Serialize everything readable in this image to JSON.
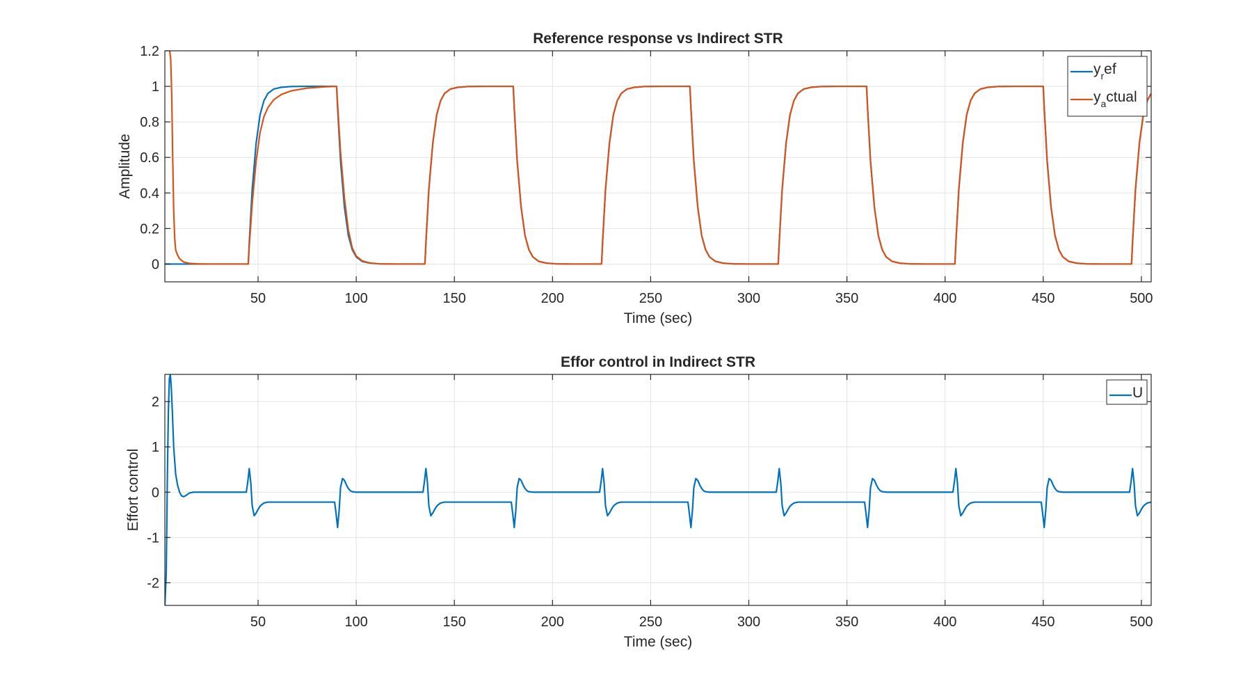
{
  "chart_data": [
    {
      "type": "line",
      "title": "Reference response vs Indirect STR",
      "xlabel": "Time (sec)",
      "ylabel": "Amplitude",
      "xlim": [
        2.5,
        505
      ],
      "ylim": [
        -0.1,
        1.2
      ],
      "xticks": [
        50,
        100,
        150,
        200,
        250,
        300,
        350,
        400,
        450,
        500
      ],
      "xtick_labels": [
        "50",
        "100",
        "150",
        "200",
        "250",
        "300",
        "350",
        "400",
        "450",
        "500"
      ],
      "yticks": [
        0,
        0.2,
        0.4,
        0.6,
        0.8,
        1,
        1.2
      ],
      "ytick_labels": [
        "0",
        "0.2",
        "0.4",
        "0.6",
        "0.8",
        "1",
        "1.2"
      ],
      "grid": true,
      "legend_position": "top-right",
      "series": [
        {
          "name": "y_ref",
          "legend_main": "y",
          "legend_sub": "r",
          "legend_rest": "ef",
          "color": "#0072BD",
          "x": [
            2.5,
            10,
            15,
            20,
            25,
            30,
            35,
            40,
            45,
            45.5,
            47,
            49,
            51,
            53,
            55,
            58,
            62,
            67,
            75,
            85,
            90,
            90.5,
            92,
            94,
            96,
            98,
            100,
            103,
            107,
            112,
            120,
            130,
            135,
            135.5,
            137,
            139,
            141,
            143,
            145,
            148,
            152,
            157,
            165,
            175,
            180,
            180.5,
            182,
            184,
            186,
            188,
            190,
            193,
            197,
            202,
            210,
            220,
            225,
            225.5,
            227,
            229,
            231,
            233,
            235,
            238,
            242,
            247,
            255,
            265,
            270,
            270.5,
            272,
            274,
            276,
            278,
            280,
            283,
            287,
            292,
            300,
            310,
            315,
            315.5,
            317,
            319,
            321,
            323,
            325,
            328,
            332,
            337,
            345,
            355,
            360,
            360.5,
            362,
            364,
            366,
            368,
            370,
            373,
            377,
            382,
            390,
            400,
            405,
            405.5,
            407,
            409,
            411,
            413,
            415,
            418,
            422,
            427,
            435,
            445,
            450,
            450.5,
            452,
            454,
            456,
            458,
            460,
            463,
            467,
            472,
            480,
            490,
            495,
            495.5,
            497,
            499,
            501,
            503,
            505
          ],
          "y": [
            0,
            0,
            0,
            0,
            0,
            0,
            0,
            0,
            0,
            0.12,
            0.42,
            0.68,
            0.84,
            0.92,
            0.96,
            0.985,
            0.995,
            0.999,
            1,
            1,
            1,
            0.88,
            0.58,
            0.32,
            0.16,
            0.08,
            0.04,
            0.015,
            0.005,
            0.001,
            0,
            0,
            0,
            0.12,
            0.42,
            0.68,
            0.84,
            0.92,
            0.96,
            0.985,
            0.995,
            0.999,
            1,
            1,
            1,
            0.88,
            0.58,
            0.32,
            0.16,
            0.08,
            0.04,
            0.015,
            0.005,
            0.001,
            0,
            0,
            0,
            0.12,
            0.42,
            0.68,
            0.84,
            0.92,
            0.96,
            0.985,
            0.995,
            0.999,
            1,
            1,
            1,
            0.88,
            0.58,
            0.32,
            0.16,
            0.08,
            0.04,
            0.015,
            0.005,
            0.001,
            0,
            0,
            0,
            0.12,
            0.42,
            0.68,
            0.84,
            0.92,
            0.96,
            0.985,
            0.995,
            0.999,
            1,
            1,
            1,
            0.88,
            0.58,
            0.32,
            0.16,
            0.08,
            0.04,
            0.015,
            0.005,
            0.001,
            0,
            0,
            0,
            0.12,
            0.42,
            0.68,
            0.84,
            0.92,
            0.96,
            0.985,
            0.995,
            0.999,
            1,
            1,
            1,
            0.88,
            0.58,
            0.32,
            0.16,
            0.08,
            0.04,
            0.015,
            0.005,
            0.001,
            0,
            0,
            0,
            0.12,
            0.42,
            0.68,
            0.84,
            0.92,
            0.96
          ]
        },
        {
          "name": "y_actual",
          "legend_main": "y",
          "legend_sub": "a",
          "legend_rest": "ctual",
          "color": "#D95319",
          "x": [
            5,
            5.5,
            6,
            6.5,
            7,
            7.5,
            8,
            9,
            10,
            12,
            15,
            20,
            25,
            30,
            35,
            40,
            45,
            45.5,
            47,
            49,
            51,
            53,
            55,
            58,
            62,
            67,
            75,
            85,
            90,
            90.5,
            92,
            94,
            96,
            98,
            100,
            103,
            107,
            112,
            120,
            130,
            135,
            135.5,
            137,
            139,
            141,
            143,
            145,
            148,
            152,
            157,
            165,
            175,
            180,
            180.5,
            182,
            184,
            186,
            188,
            190,
            193,
            197,
            202,
            210,
            220,
            225,
            225.5,
            227,
            229,
            231,
            233,
            235,
            238,
            242,
            247,
            255,
            265,
            270,
            270.5,
            272,
            274,
            276,
            278,
            280,
            283,
            287,
            292,
            300,
            310,
            315,
            315.5,
            317,
            319,
            321,
            323,
            325,
            328,
            332,
            337,
            345,
            355,
            360,
            360.5,
            362,
            364,
            366,
            368,
            370,
            373,
            377,
            382,
            390,
            400,
            405,
            405.5,
            407,
            409,
            411,
            413,
            415,
            418,
            422,
            427,
            435,
            445,
            450,
            450.5,
            452,
            454,
            456,
            458,
            460,
            463,
            467,
            472,
            480,
            490,
            495,
            495.5,
            497,
            499,
            501,
            503,
            505
          ],
          "y": [
            1.2,
            1.15,
            0.95,
            0.6,
            0.3,
            0.15,
            0.08,
            0.05,
            0.03,
            0.012,
            0.004,
            0.001,
            0,
            0,
            0,
            0,
            0,
            0.1,
            0.34,
            0.58,
            0.74,
            0.83,
            0.88,
            0.925,
            0.955,
            0.975,
            0.99,
            0.998,
            1,
            0.9,
            0.63,
            0.37,
            0.19,
            0.09,
            0.045,
            0.018,
            0.006,
            0.001,
            0,
            0,
            0,
            0.12,
            0.42,
            0.68,
            0.84,
            0.92,
            0.96,
            0.985,
            0.995,
            0.999,
            1,
            1,
            1,
            0.88,
            0.58,
            0.32,
            0.16,
            0.08,
            0.04,
            0.015,
            0.005,
            0.001,
            0,
            0,
            0,
            0.12,
            0.42,
            0.68,
            0.84,
            0.92,
            0.96,
            0.985,
            0.995,
            0.999,
            1,
            1,
            1,
            0.88,
            0.58,
            0.32,
            0.16,
            0.08,
            0.04,
            0.015,
            0.005,
            0.001,
            0,
            0,
            0,
            0.12,
            0.42,
            0.68,
            0.84,
            0.92,
            0.96,
            0.985,
            0.995,
            0.999,
            1,
            1,
            1,
            0.88,
            0.58,
            0.32,
            0.16,
            0.08,
            0.04,
            0.015,
            0.005,
            0.001,
            0,
            0,
            0,
            0.12,
            0.42,
            0.68,
            0.84,
            0.92,
            0.96,
            0.985,
            0.995,
            0.999,
            1,
            1,
            1,
            0.88,
            0.58,
            0.32,
            0.16,
            0.08,
            0.04,
            0.015,
            0.005,
            0.001,
            0,
            0,
            0,
            0.12,
            0.42,
            0.68,
            0.84,
            0.92,
            0.96
          ]
        }
      ]
    },
    {
      "type": "line",
      "title": "Effor control in Indirect STR",
      "xlabel": "Time (sec)",
      "ylabel": "Effort control",
      "xlim": [
        2.5,
        505
      ],
      "ylim": [
        -2.5,
        2.6
      ],
      "xticks": [
        50,
        100,
        150,
        200,
        250,
        300,
        350,
        400,
        450,
        500
      ],
      "xtick_labels": [
        "50",
        "100",
        "150",
        "200",
        "250",
        "300",
        "350",
        "400",
        "450",
        "500"
      ],
      "yticks": [
        -2,
        -1,
        0,
        1,
        2
      ],
      "ytick_labels": [
        "-2",
        "-1",
        "0",
        "1",
        "2"
      ],
      "grid": true,
      "legend_position": "top-right",
      "series": [
        {
          "name": "U",
          "legend_main": "U",
          "legend_sub": "",
          "legend_rest": "",
          "color": "#0072BD",
          "x": [
            2.5,
            3.2,
            3.8,
            4.3,
            4.8,
            5.3,
            5.8,
            6.3,
            7,
            8,
            9,
            10,
            11,
            12,
            13,
            14,
            15,
            17,
            20,
            30,
            44,
            44.8,
            45.5,
            46.3,
            47,
            48,
            49,
            50,
            51,
            52,
            53,
            55,
            57,
            60,
            66,
            89,
            89.8,
            90.5,
            91.3,
            92,
            93,
            94,
            95,
            96,
            97,
            98,
            100,
            102,
            105,
            111,
            134,
            134.8,
            135.5,
            136.3,
            137,
            138,
            139,
            140,
            141,
            142,
            143,
            145,
            147,
            150,
            156,
            179,
            179.8,
            180.5,
            181.3,
            182,
            183,
            184,
            185,
            186,
            187,
            188,
            190,
            192,
            195,
            201,
            224,
            224.8,
            225.5,
            226.3,
            227,
            228,
            229,
            230,
            231,
            232,
            233,
            235,
            237,
            240,
            246,
            269,
            269.8,
            270.5,
            271.3,
            272,
            273,
            274,
            275,
            276,
            277,
            278,
            280,
            282,
            285,
            291,
            314,
            314.8,
            315.5,
            316.3,
            317,
            318,
            319,
            320,
            321,
            322,
            323,
            325,
            327,
            330,
            336,
            359,
            359.8,
            360.5,
            361.3,
            362,
            363,
            364,
            365,
            366,
            367,
            368,
            370,
            372,
            375,
            381,
            404,
            404.8,
            405.5,
            406.3,
            407,
            408,
            409,
            410,
            411,
            412,
            413,
            415,
            417,
            420,
            426,
            449,
            449.8,
            450.5,
            451.3,
            452,
            453,
            454,
            455,
            456,
            457,
            458,
            460,
            462,
            465,
            471,
            494,
            494.8,
            495.5,
            496.3,
            497,
            498,
            499,
            500,
            501,
            502,
            503,
            505
          ],
          "y": [
            -2.5,
            -1.8,
            0.4,
            1.8,
            2.5,
            2.6,
            2.3,
            1.8,
            1,
            0.4,
            0.15,
            0,
            -0.08,
            -0.1,
            -0.08,
            -0.05,
            -0.02,
            0,
            0,
            0,
            0,
            0.25,
            0.52,
            0.2,
            -0.3,
            -0.52,
            -0.46,
            -0.38,
            -0.31,
            -0.27,
            -0.24,
            -0.22,
            -0.22,
            -0.22,
            -0.22,
            -0.22,
            -0.5,
            -0.78,
            -0.4,
            0.1,
            0.3,
            0.26,
            0.16,
            0.08,
            0.03,
            0.01,
            0,
            0,
            0,
            0,
            0,
            0.25,
            0.52,
            0.2,
            -0.3,
            -0.52,
            -0.46,
            -0.38,
            -0.31,
            -0.27,
            -0.24,
            -0.22,
            -0.22,
            -0.22,
            -0.22,
            -0.22,
            -0.5,
            -0.78,
            -0.4,
            0.1,
            0.3,
            0.26,
            0.16,
            0.08,
            0.03,
            0.01,
            0,
            0,
            0,
            0,
            0,
            0.25,
            0.52,
            0.2,
            -0.3,
            -0.52,
            -0.46,
            -0.38,
            -0.31,
            -0.27,
            -0.24,
            -0.22,
            -0.22,
            -0.22,
            -0.22,
            -0.22,
            -0.5,
            -0.78,
            -0.4,
            0.1,
            0.3,
            0.26,
            0.16,
            0.08,
            0.03,
            0.01,
            0,
            0,
            0,
            0,
            0,
            0.25,
            0.52,
            0.2,
            -0.3,
            -0.52,
            -0.46,
            -0.38,
            -0.31,
            -0.27,
            -0.24,
            -0.22,
            -0.22,
            -0.22,
            -0.22,
            -0.22,
            -0.5,
            -0.78,
            -0.4,
            0.1,
            0.3,
            0.26,
            0.16,
            0.08,
            0.03,
            0.01,
            0,
            0,
            0,
            0,
            0,
            0.25,
            0.52,
            0.2,
            -0.3,
            -0.52,
            -0.46,
            -0.38,
            -0.31,
            -0.27,
            -0.24,
            -0.22,
            -0.22,
            -0.22,
            -0.22,
            -0.22,
            -0.5,
            -0.78,
            -0.4,
            0.1,
            0.3,
            0.26,
            0.16,
            0.08,
            0.03,
            0.01,
            0,
            0,
            0,
            0,
            0,
            0.25,
            0.52,
            0.2,
            -0.3,
            -0.52,
            -0.46,
            -0.38,
            -0.31,
            -0.27,
            -0.24,
            -0.22
          ]
        }
      ]
    }
  ]
}
